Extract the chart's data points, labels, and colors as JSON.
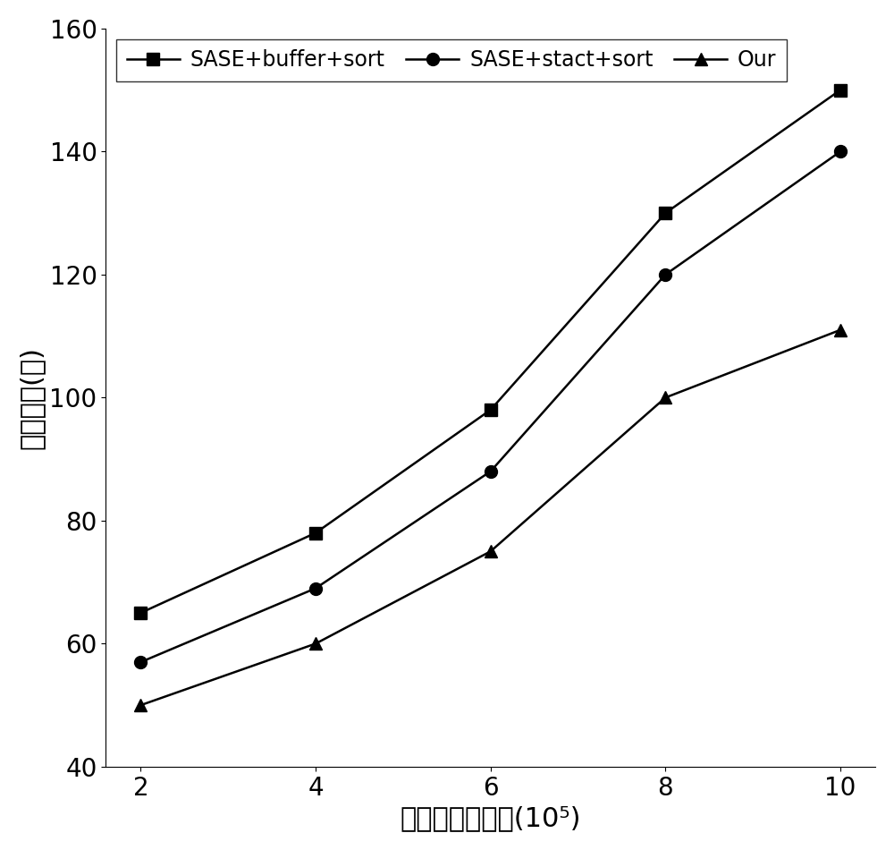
{
  "x": [
    2,
    4,
    6,
    8,
    10
  ],
  "series": [
    {
      "label": "SASE+buffer+sort",
      "values": [
        65,
        78,
        98,
        130,
        150
      ],
      "marker": "s",
      "color": "#000000",
      "markersize": 10
    },
    {
      "label": "SASE+stact+sort",
      "values": [
        57,
        69,
        88,
        120,
        140
      ],
      "marker": "o",
      "color": "#000000",
      "markersize": 10
    },
    {
      "label": "Our",
      "values": [
        50,
        60,
        75,
        100,
        111
      ],
      "marker": "^",
      "color": "#000000",
      "markersize": 10
    }
  ],
  "xlabel_chinese": "乱序数据流规模",
  "xlabel_super": "10⁵",
  "ylabel_chinese": "检测时间",
  "ylabel_paren": "(秒)",
  "ylim": [
    40,
    160
  ],
  "yticks": [
    40,
    60,
    80,
    100,
    120,
    140,
    160
  ],
  "xticks": [
    2,
    4,
    6,
    8,
    10
  ],
  "label_fontsize": 22,
  "tick_fontsize": 20,
  "legend_fontsize": 17,
  "linewidth": 1.8,
  "markersize": 10,
  "background_color": "#ffffff"
}
